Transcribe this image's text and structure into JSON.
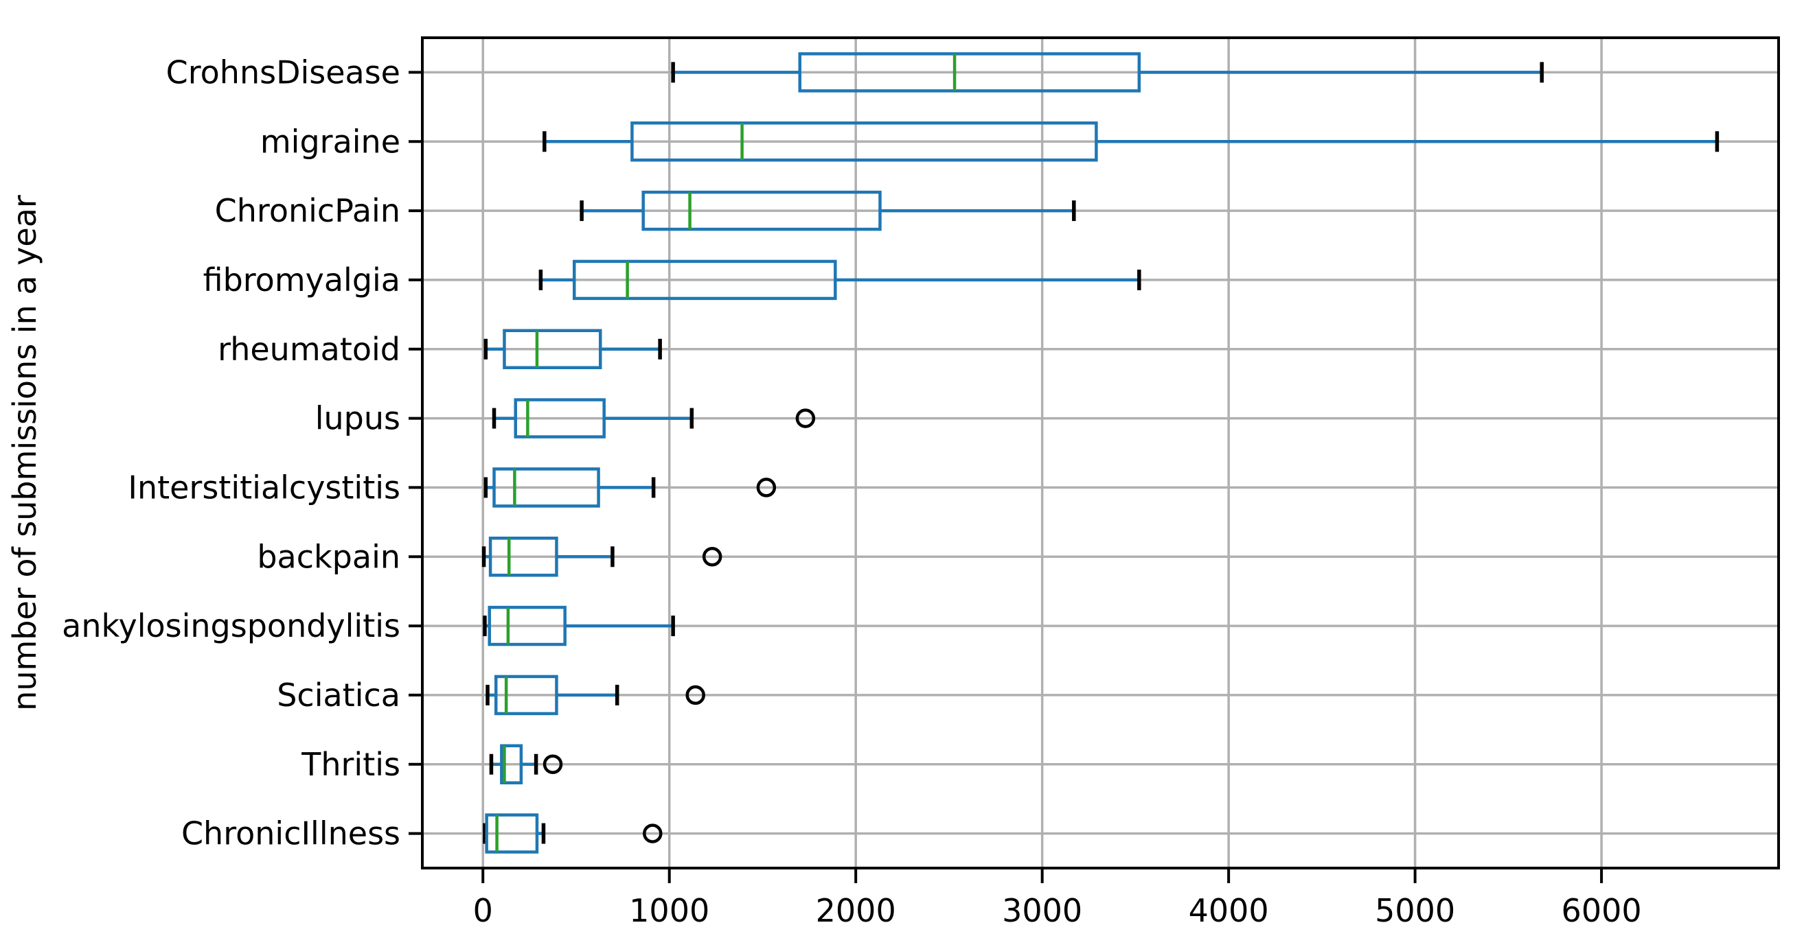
{
  "figure": {
    "background": "#ffffff"
  },
  "chart_data": {
    "type": "boxplot",
    "orientation": "horizontal",
    "title": "",
    "xlabel": "",
    "ylabel": "number of submissions in a year",
    "xlim": [
      -325,
      6950
    ],
    "xticks": [
      0,
      1000,
      2000,
      3000,
      4000,
      5000,
      6000
    ],
    "grid": true,
    "legend": false,
    "categories": [
      "CrohnsDisease",
      "migraine",
      "ChronicPain",
      "fibromyalgia",
      "rheumatoid",
      "lupus",
      "Interstitialcystitis",
      "backpain",
      "ankylosingspondylitis",
      "Sciatica",
      "Thritis",
      "ChronicIllness"
    ],
    "series": [
      {
        "name": "CrohnsDisease",
        "whisker_low": 1020,
        "q1": 1700,
        "median": 2530,
        "q3": 3520,
        "whisker_high": 5680,
        "outliers": []
      },
      {
        "name": "migraine",
        "whisker_low": 330,
        "q1": 800,
        "median": 1390,
        "q3": 3290,
        "whisker_high": 6620,
        "outliers": []
      },
      {
        "name": "ChronicPain",
        "whisker_low": 530,
        "q1": 860,
        "median": 1110,
        "q3": 2130,
        "whisker_high": 3170,
        "outliers": []
      },
      {
        "name": "fibromyalgia",
        "whisker_low": 310,
        "q1": 490,
        "median": 775,
        "q3": 1890,
        "whisker_high": 3520,
        "outliers": []
      },
      {
        "name": "rheumatoid",
        "whisker_low": 15,
        "q1": 115,
        "median": 290,
        "q3": 630,
        "whisker_high": 950,
        "outliers": []
      },
      {
        "name": "lupus",
        "whisker_low": 60,
        "q1": 175,
        "median": 240,
        "q3": 650,
        "whisker_high": 1120,
        "outliers": [
          1730
        ]
      },
      {
        "name": "Interstitialcystitis",
        "whisker_low": 15,
        "q1": 60,
        "median": 170,
        "q3": 620,
        "whisker_high": 915,
        "outliers": [
          1520
        ]
      },
      {
        "name": "backpain",
        "whisker_low": 5,
        "q1": 40,
        "median": 140,
        "q3": 395,
        "whisker_high": 695,
        "outliers": [
          1230
        ]
      },
      {
        "name": "ankylosingspondylitis",
        "whisker_low": 10,
        "q1": 35,
        "median": 135,
        "q3": 440,
        "whisker_high": 1020,
        "outliers": []
      },
      {
        "name": "Sciatica",
        "whisker_low": 25,
        "q1": 70,
        "median": 125,
        "q3": 395,
        "whisker_high": 720,
        "outliers": [
          1140
        ]
      },
      {
        "name": "Thritis",
        "whisker_low": 45,
        "q1": 100,
        "median": 115,
        "q3": 205,
        "whisker_high": 285,
        "outliers": [
          375
        ]
      },
      {
        "name": "ChronicIllness",
        "whisker_low": 10,
        "q1": 20,
        "median": 75,
        "q3": 290,
        "whisker_high": 325,
        "outliers": [
          910
        ]
      }
    ],
    "colors": {
      "box": "#1f77b4",
      "whisker": "#1f77b4",
      "median": "#2ca02c",
      "cap": "#000000",
      "outlier": "#000000",
      "grid": "#b0b0b0",
      "axis": "#000000",
      "text": "#000000",
      "background": "#ffffff"
    }
  }
}
